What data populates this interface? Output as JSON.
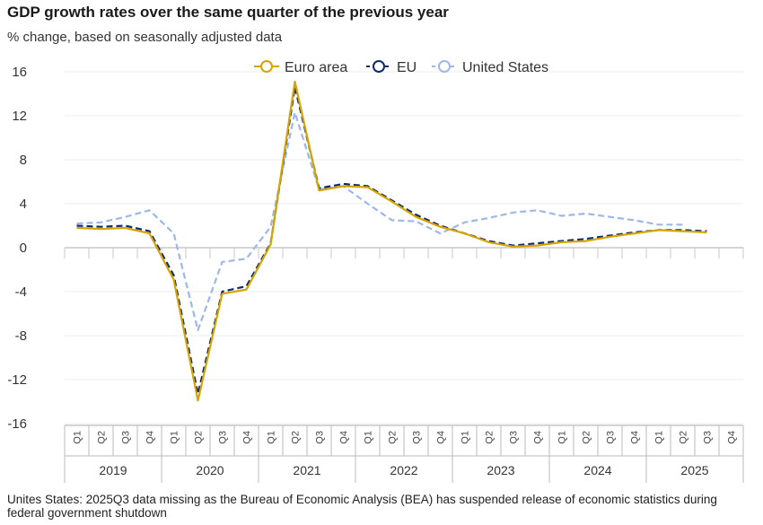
{
  "title": "GDP growth rates over the same quarter of the previous year",
  "subtitle": "% change, based on seasonally adjusted data",
  "footnote": "Unites States: 2025Q3 data missing as the Bureau of Economic Analysis (BEA) has suspended release of economic statistics during federal government shutdown",
  "chart_data": {
    "type": "line",
    "x": [
      "2019Q1",
      "2019Q2",
      "2019Q3",
      "2019Q4",
      "2020Q1",
      "2020Q2",
      "2020Q3",
      "2020Q4",
      "2021Q1",
      "2021Q2",
      "2021Q3",
      "2021Q4",
      "2022Q1",
      "2022Q2",
      "2022Q3",
      "2022Q4",
      "2023Q1",
      "2023Q2",
      "2023Q3",
      "2023Q4",
      "2024Q1",
      "2024Q2",
      "2024Q3",
      "2024Q4",
      "2025Q1",
      "2025Q2",
      "2025Q3",
      "2025Q4"
    ],
    "quarter_labels": [
      "Q1",
      "Q2",
      "Q3",
      "Q4"
    ],
    "years": [
      "2019",
      "2020",
      "2021",
      "2022",
      "2023",
      "2024",
      "2025"
    ],
    "ylim": [
      -16,
      16
    ],
    "yticks": [
      -16,
      -12,
      -8,
      -4,
      0,
      4,
      8,
      12,
      16
    ],
    "grid": true,
    "legend_position": "top-center",
    "series": [
      {
        "name": "Euro area",
        "color": "#d6a400",
        "dash": "solid",
        "values": [
          1.8,
          1.7,
          1.8,
          1.3,
          -2.9,
          -13.9,
          -4.2,
          -3.8,
          0.3,
          15.1,
          5.2,
          5.6,
          5.5,
          4.2,
          2.8,
          1.9,
          1.3,
          0.5,
          0.1,
          0.2,
          0.5,
          0.6,
          1.0,
          1.3,
          1.6,
          1.5,
          1.4,
          null
        ]
      },
      {
        "name": "EU",
        "color": "#0b2a6f",
        "dash": "dashed",
        "values": [
          2.0,
          1.9,
          2.0,
          1.5,
          -2.5,
          -13.3,
          -4.0,
          -3.5,
          0.4,
          14.6,
          5.4,
          5.8,
          5.6,
          4.3,
          3.0,
          2.0,
          1.3,
          0.6,
          0.2,
          0.4,
          0.6,
          0.8,
          1.1,
          1.4,
          1.6,
          1.6,
          1.5,
          null
        ]
      },
      {
        "name": "United States",
        "color": "#9db8e8",
        "dash": "dashed",
        "values": [
          2.2,
          2.3,
          2.8,
          3.4,
          1.3,
          -7.5,
          -1.3,
          -1.0,
          1.9,
          12.3,
          5.3,
          5.6,
          4.0,
          2.5,
          2.4,
          1.3,
          2.3,
          2.7,
          3.2,
          3.4,
          2.9,
          3.1,
          2.8,
          2.5,
          2.1,
          2.1,
          null,
          null
        ]
      }
    ]
  }
}
